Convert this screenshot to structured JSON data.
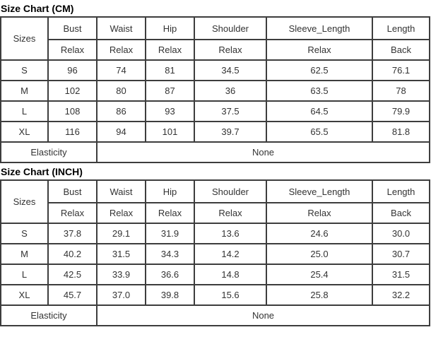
{
  "colors": {
    "border": "#3d3d3d",
    "cell_text": "#333333",
    "title_text": "#000000",
    "background": "#ffffff"
  },
  "tables": [
    {
      "title": "Size Chart (CM)",
      "corner_header": "Sizes",
      "columns": [
        "Bust",
        "Waist",
        "Hip",
        "Shoulder",
        "Sleeve_Length",
        "Length"
      ],
      "fit_row": [
        "Relax",
        "Relax",
        "Relax",
        "Relax",
        "Relax",
        "Back"
      ],
      "rows": [
        {
          "size": "S",
          "values": [
            "96",
            "74",
            "81",
            "34.5",
            "62.5",
            "76.1"
          ]
        },
        {
          "size": "M",
          "values": [
            "102",
            "80",
            "87",
            "36",
            "63.5",
            "78"
          ]
        },
        {
          "size": "L",
          "values": [
            "108",
            "86",
            "93",
            "37.5",
            "64.5",
            "79.9"
          ]
        },
        {
          "size": "XL",
          "values": [
            "116",
            "94",
            "101",
            "39.7",
            "65.5",
            "81.8"
          ]
        }
      ],
      "elasticity_label": "Elasticity",
      "elasticity_value": "None"
    },
    {
      "title": "Size Chart (INCH)",
      "corner_header": "Sizes",
      "columns": [
        "Bust",
        "Waist",
        "Hip",
        "Shoulder",
        "Sleeve_Length",
        "Length"
      ],
      "fit_row": [
        "Relax",
        "Relax",
        "Relax",
        "Relax",
        "Relax",
        "Back"
      ],
      "rows": [
        {
          "size": "S",
          "values": [
            "37.8",
            "29.1",
            "31.9",
            "13.6",
            "24.6",
            "30.0"
          ]
        },
        {
          "size": "M",
          "values": [
            "40.2",
            "31.5",
            "34.3",
            "14.2",
            "25.0",
            "30.7"
          ]
        },
        {
          "size": "L",
          "values": [
            "42.5",
            "33.9",
            "36.6",
            "14.8",
            "25.4",
            "31.5"
          ]
        },
        {
          "size": "XL",
          "values": [
            "45.7",
            "37.0",
            "39.8",
            "15.6",
            "25.8",
            "32.2"
          ]
        }
      ],
      "elasticity_label": "Elasticity",
      "elasticity_value": "None"
    }
  ]
}
